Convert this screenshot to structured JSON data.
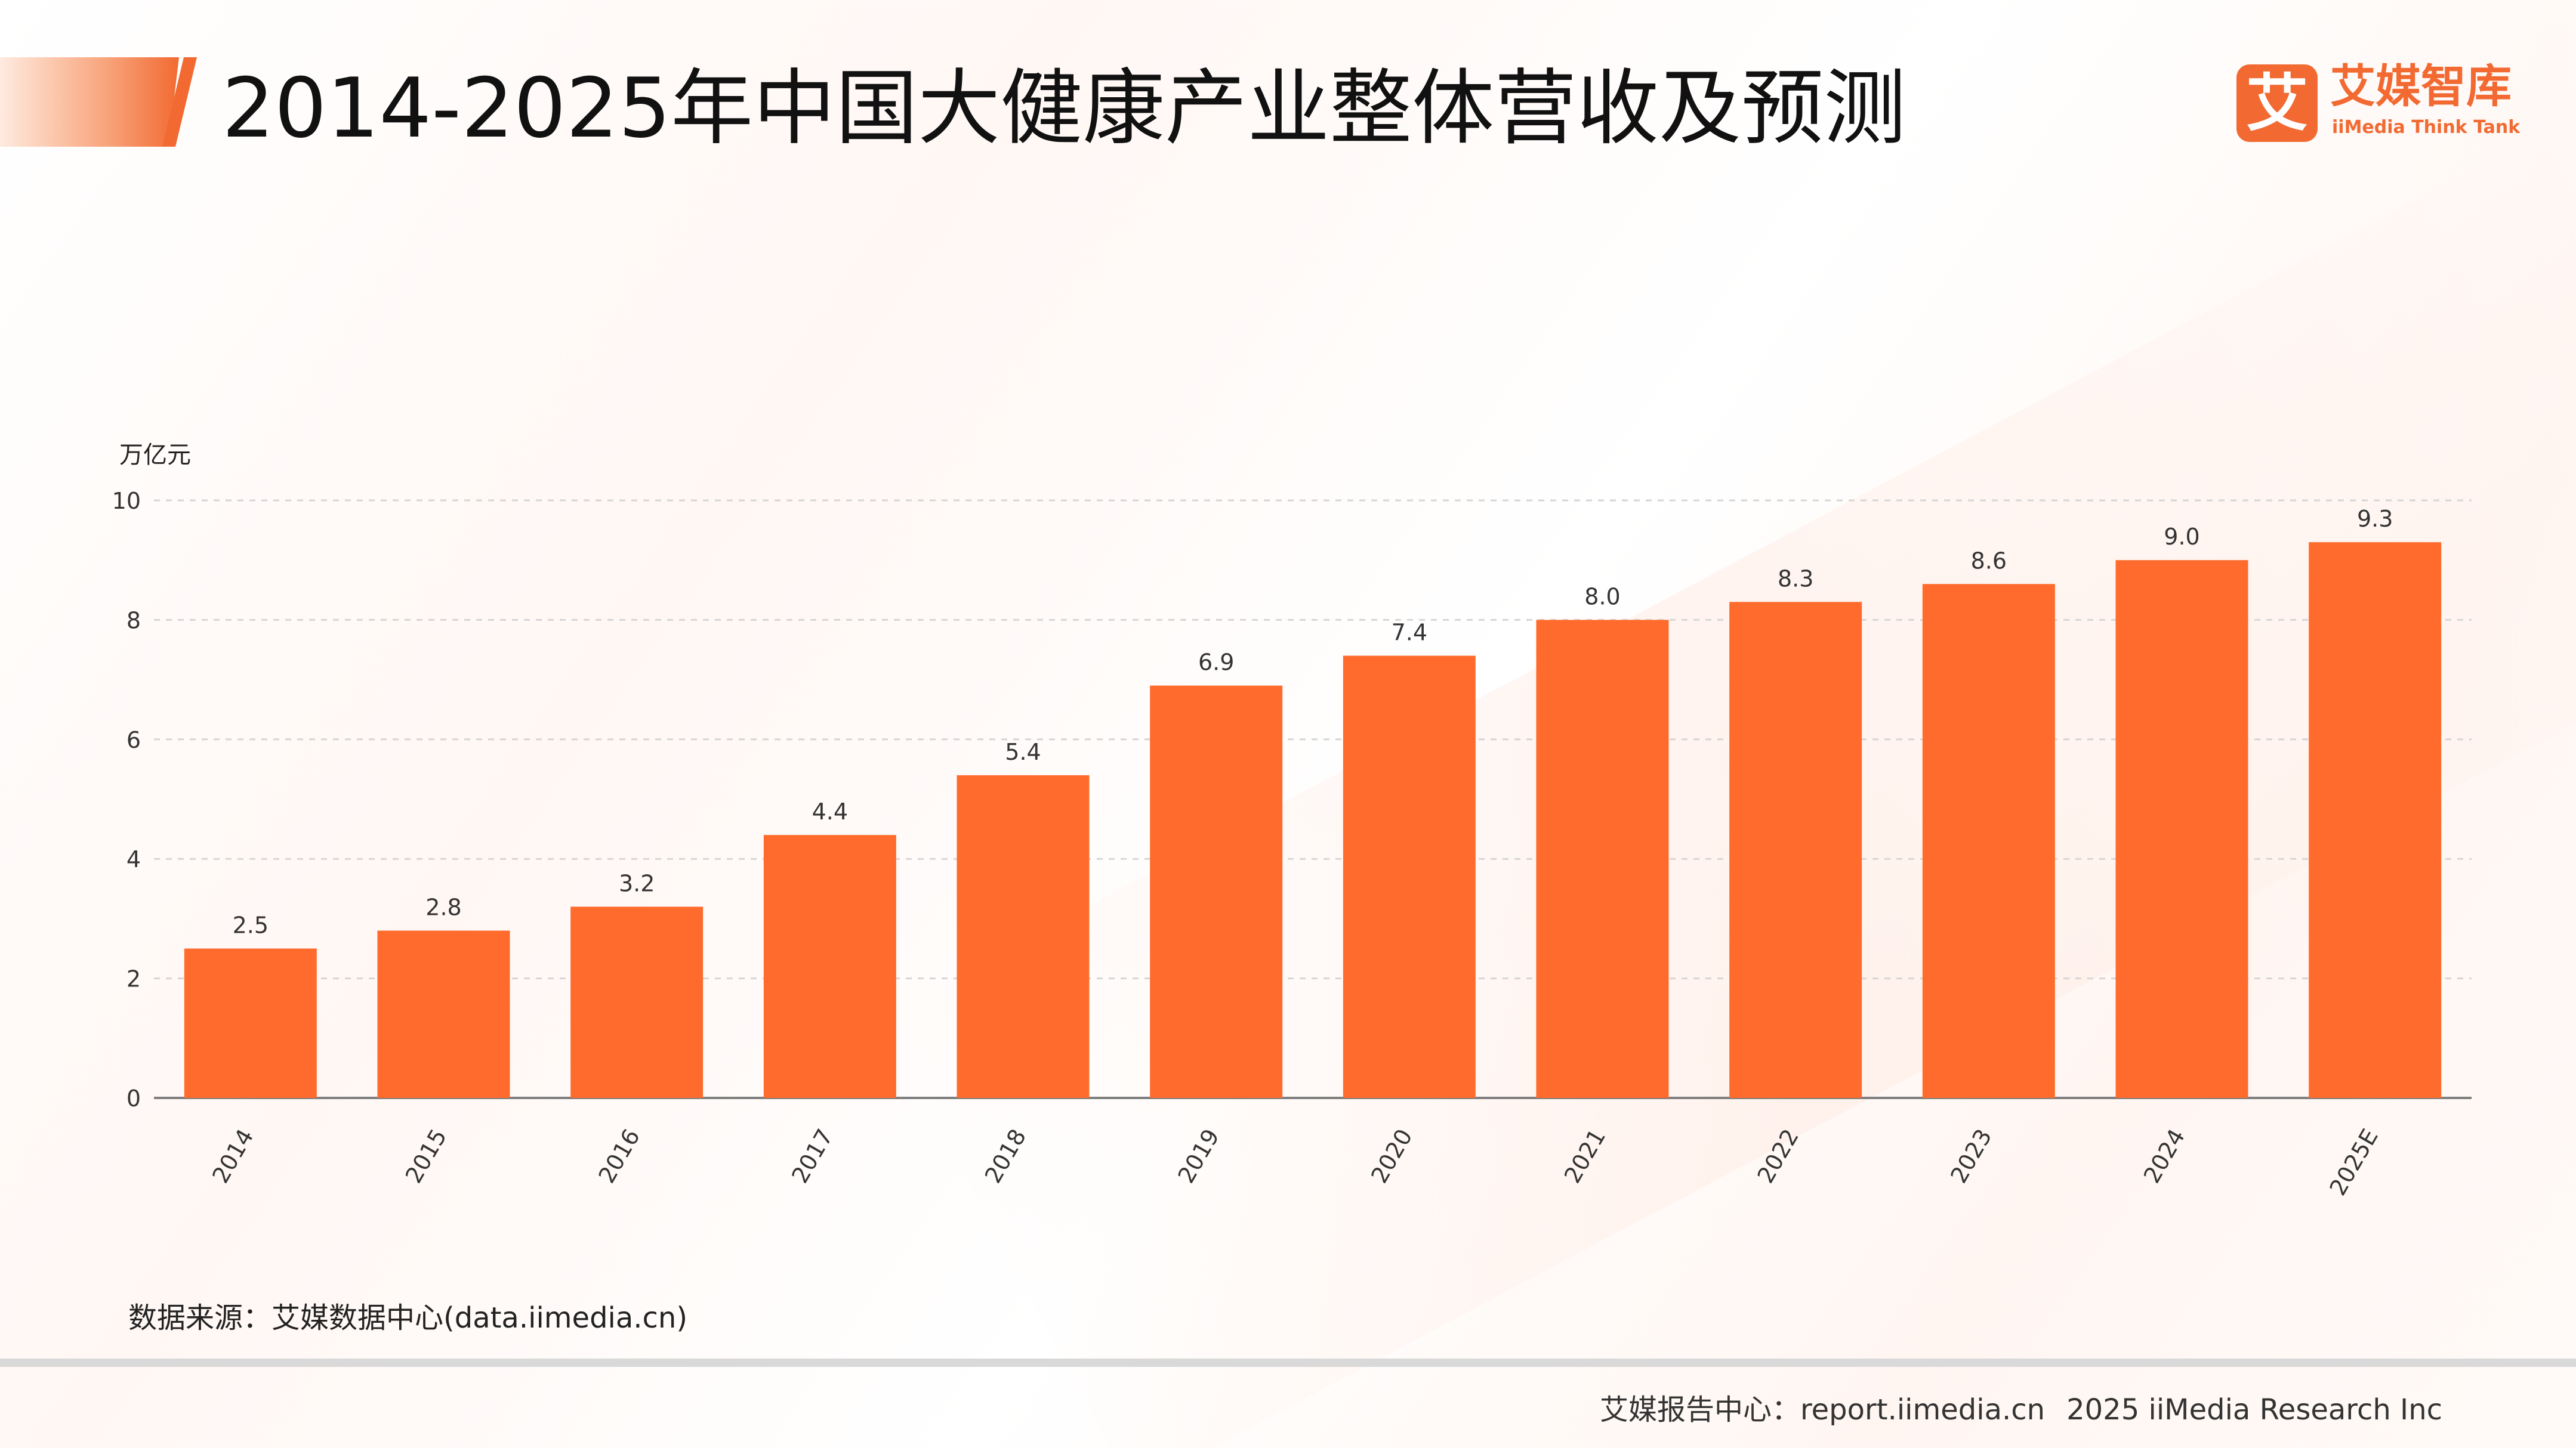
{
  "header": {
    "title": "2014-2025年中国大健康产业整体营收及预测"
  },
  "logo": {
    "mark": "艾",
    "name_cn": "艾媒智库",
    "name_en": "iiMedia Think Tank"
  },
  "colors": {
    "accent": "#f26a32",
    "bar": "#ff6b2c",
    "text": "#111111"
  },
  "chart_data": {
    "type": "bar",
    "title": "2014-2025年中国大健康产业整体营收及预测",
    "ylabel": "万亿元",
    "xlabel": "",
    "categories": [
      "2014",
      "2015",
      "2016",
      "2017",
      "2018",
      "2019",
      "2020",
      "2021",
      "2022",
      "2023",
      "2024",
      "2025E"
    ],
    "values": [
      2.5,
      2.8,
      3.2,
      4.4,
      5.4,
      6.9,
      7.4,
      8.0,
      8.3,
      8.6,
      9.0,
      9.3
    ],
    "value_labels": [
      "2.5",
      "2.8",
      "3.2",
      "4.4",
      "5.4",
      "6.9",
      "7.4",
      "8.0",
      "8.3",
      "8.6",
      "9.0",
      "9.3"
    ],
    "yticks": [
      "0",
      "2",
      "4",
      "6",
      "8",
      "10"
    ],
    "ylim": [
      0,
      10
    ],
    "grid": "horizontal dashed",
    "legend": "none"
  },
  "footer": {
    "source": "数据来源：艾媒数据中心(data.iimedia.cn)",
    "report": "艾媒报告中心：report.iimedia.cn",
    "copyright": "2025 iiMedia Research Inc"
  }
}
